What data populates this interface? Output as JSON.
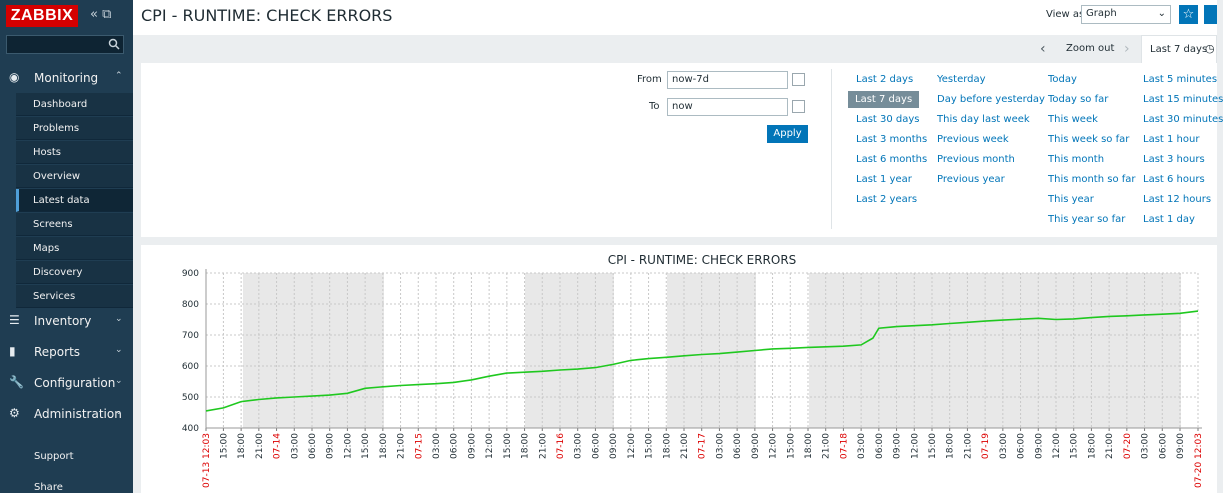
{
  "sidebar": {
    "logo": "ZABBIX",
    "menu": [
      {
        "label": "Monitoring",
        "items": [
          "Dashboard",
          "Problems",
          "Hosts",
          "Overview",
          "Latest data",
          "Screens",
          "Maps",
          "Discovery",
          "Services"
        ]
      },
      {
        "label": "Inventory"
      },
      {
        "label": "Reports"
      },
      {
        "label": "Configuration"
      },
      {
        "label": "Administration"
      }
    ],
    "links": [
      "Support",
      "Share"
    ]
  },
  "header": {
    "title": "CPI - RUNTIME: CHECK ERRORS",
    "view_as_label": "View as",
    "view_as_value": "Graph"
  },
  "filter": {
    "zoom_out": "Zoom out",
    "active_tab": "Last 7 days",
    "from_label": "From",
    "from_value": "now-7d",
    "to_label": "To",
    "to_value": "now",
    "apply": "Apply",
    "quick_ranges": [
      [
        "Last 2 days",
        "Last 7 days",
        "Last 30 days",
        "Last 3 months",
        "Last 6 months",
        "Last 1 year",
        "Last 2 years"
      ],
      [
        "Yesterday",
        "Day before yesterday",
        "This day last week",
        "Previous week",
        "Previous month",
        "Previous year"
      ],
      [
        "Today",
        "Today so far",
        "This week",
        "This week so far",
        "This month",
        "This month so far",
        "This year",
        "This year so far"
      ],
      [
        "Last 5 minutes",
        "Last 15 minutes",
        "Last 30 minutes",
        "Last 1 hour",
        "Last 3 hours",
        "Last 6 hours",
        "Last 12 hours",
        "Last 1 day"
      ]
    ]
  },
  "chart_data": {
    "type": "line",
    "title": "CPI - RUNTIME: CHECK ERRORS",
    "color": "#1fc81f",
    "x": [
      12.05,
      15,
      18,
      21,
      24,
      27,
      30,
      33,
      36,
      39,
      42,
      45,
      48,
      51,
      54,
      57,
      60,
      63,
      66,
      69,
      72,
      75,
      78,
      81,
      84,
      87,
      90,
      93,
      96,
      99,
      102,
      105,
      108,
      111,
      114,
      117,
      120,
      123,
      125,
      126,
      129,
      132,
      135,
      138,
      141,
      144,
      147,
      150,
      153,
      156,
      159,
      162,
      165,
      168,
      171,
      174,
      177,
      180.05
    ],
    "values": [
      455,
      465,
      485,
      492,
      497,
      500,
      503,
      506,
      512,
      528,
      533,
      537,
      540,
      543,
      547,
      555,
      567,
      577,
      580,
      583,
      587,
      590,
      595,
      605,
      618,
      624,
      628,
      633,
      637,
      640,
      645,
      650,
      655,
      657,
      660,
      662,
      664,
      668,
      690,
      722,
      727,
      730,
      733,
      737,
      741,
      745,
      748,
      751,
      754,
      750,
      752,
      756,
      760,
      762,
      765,
      767,
      770,
      777
    ],
    "xlim": [
      12.05,
      180.05
    ],
    "ylim": [
      400,
      900
    ],
    "yticks": [
      400,
      500,
      600,
      700,
      800,
      900
    ],
    "grid": true,
    "xticks": [
      {
        "value": 12.05,
        "label": "07-13 12:03"
      },
      {
        "value": 15,
        "label": "15:00"
      },
      {
        "value": 18,
        "label": "18:00"
      },
      {
        "value": 21,
        "label": "21:00"
      },
      {
        "value": 24,
        "label": "07-14"
      },
      {
        "value": 27,
        "label": "03:00"
      },
      {
        "value": 30,
        "label": "06:00"
      },
      {
        "value": 33,
        "label": "09:00"
      },
      {
        "value": 36,
        "label": "12:00"
      },
      {
        "value": 39,
        "label": "15:00"
      },
      {
        "value": 42,
        "label": "18:00"
      },
      {
        "value": 45,
        "label": "21:00"
      },
      {
        "value": 48,
        "label": "07-15"
      },
      {
        "value": 51,
        "label": "03:00"
      },
      {
        "value": 54,
        "label": "06:00"
      },
      {
        "value": 57,
        "label": "09:00"
      },
      {
        "value": 60,
        "label": "12:00"
      },
      {
        "value": 63,
        "label": "15:00"
      },
      {
        "value": 66,
        "label": "18:00"
      },
      {
        "value": 69,
        "label": "21:00"
      },
      {
        "value": 72,
        "label": "07-16"
      },
      {
        "value": 75,
        "label": "03:00"
      },
      {
        "value": 78,
        "label": "06:00"
      },
      {
        "value": 81,
        "label": "09:00"
      },
      {
        "value": 84,
        "label": "12:00"
      },
      {
        "value": 87,
        "label": "15:00"
      },
      {
        "value": 90,
        "label": "18:00"
      },
      {
        "value": 93,
        "label": "21:00"
      },
      {
        "value": 96,
        "label": "07-17"
      },
      {
        "value": 99,
        "label": "03:00"
      },
      {
        "value": 102,
        "label": "06:00"
      },
      {
        "value": 105,
        "label": "09:00"
      },
      {
        "value": 108,
        "label": "12:00"
      },
      {
        "value": 111,
        "label": "15:00"
      },
      {
        "value": 114,
        "label": "18:00"
      },
      {
        "value": 117,
        "label": "21:00"
      },
      {
        "value": 120,
        "label": "07-18"
      },
      {
        "value": 123,
        "label": "03:00"
      },
      {
        "value": 126,
        "label": "06:00"
      },
      {
        "value": 129,
        "label": "09:00"
      },
      {
        "value": 132,
        "label": "12:00"
      },
      {
        "value": 135,
        "label": "15:00"
      },
      {
        "value": 138,
        "label": "18:00"
      },
      {
        "value": 141,
        "label": "21:00"
      },
      {
        "value": 144,
        "label": "07-19"
      },
      {
        "value": 147,
        "label": "03:00"
      },
      {
        "value": 150,
        "label": "06:00"
      },
      {
        "value": 153,
        "label": "09:00"
      },
      {
        "value": 156,
        "label": "12:00"
      },
      {
        "value": 159,
        "label": "15:00"
      },
      {
        "value": 162,
        "label": "18:00"
      },
      {
        "value": 165,
        "label": "21:00"
      },
      {
        "value": 168,
        "label": "07-20"
      },
      {
        "value": 171,
        "label": "03:00"
      },
      {
        "value": 174,
        "label": "06:00"
      },
      {
        "value": 177,
        "label": "09:00"
      },
      {
        "value": 180.05,
        "label": "07-20 12:03"
      }
    ]
  }
}
